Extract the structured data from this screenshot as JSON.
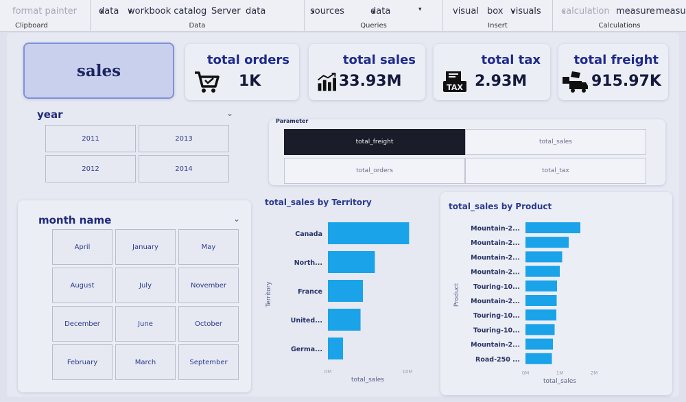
{
  "ribbon": {
    "clipboard": {
      "item": "format painter",
      "label": "Clipboard"
    },
    "data": {
      "items": [
        "data",
        "workbook catalog",
        "Server",
        "data"
      ],
      "label": "Data"
    },
    "queries": {
      "items": [
        "sources",
        "data"
      ],
      "label": "Queries"
    },
    "insert": {
      "items": [
        "visual",
        "box",
        "visuals"
      ],
      "label": "Insert"
    },
    "calculations": {
      "items": [
        "calculation",
        "measure",
        "measure"
      ],
      "label": "Calculations"
    }
  },
  "dashboard": {
    "title": "sales",
    "kpis": [
      {
        "title": "total orders",
        "value": "1K",
        "icon": "cart-icon"
      },
      {
        "title": "total sales",
        "value": "33.93M",
        "icon": "growth-chart-icon"
      },
      {
        "title": "total tax",
        "value": "2.93M",
        "icon": "tax-icon"
      },
      {
        "title": "total freight",
        "value": "915.97K",
        "icon": "delivery-truck-icon"
      }
    ],
    "year_slicer": {
      "title": "year",
      "options": [
        "2011",
        "2013",
        "2012",
        "2014"
      ]
    },
    "month_slicer": {
      "title": "month name",
      "options": [
        "April",
        "January",
        "May",
        "August",
        "July",
        "November",
        "December",
        "June",
        "October",
        "February",
        "March",
        "September"
      ]
    },
    "parameter": {
      "title": "Parameter",
      "options": [
        "total_freight",
        "total_sales",
        "total_orders",
        "total_tax"
      ],
      "selected": "total_freight"
    }
  },
  "chart_data": [
    {
      "type": "bar",
      "orientation": "horizontal",
      "title": "total_sales by Territory",
      "ylabel": "Territory",
      "xlabel": "total_sales",
      "categories": [
        "Canada",
        "North...",
        "France",
        "United...",
        "Germa..."
      ],
      "values": [
        10.2,
        5.9,
        4.4,
        4.1,
        1.9
      ],
      "xlim": [
        0,
        10
      ],
      "x_ticks": [
        "0M",
        "10M"
      ],
      "color": "#1aa3e8"
    },
    {
      "type": "bar",
      "orientation": "horizontal",
      "title": "total_sales by Product",
      "ylabel": "Product",
      "xlabel": "total_sales",
      "categories": [
        "Mountain-2...",
        "Mountain-2...",
        "Mountain-2...",
        "Mountain-2...",
        "Touring-10...",
        "Mountain-2...",
        "Touring-10...",
        "Touring-10...",
        "Mountain-2...",
        "Road-250 ..."
      ],
      "values": [
        1.6,
        1.26,
        1.07,
        1.0,
        0.92,
        0.91,
        0.9,
        0.85,
        0.8,
        0.77
      ],
      "xlim": [
        0,
        2
      ],
      "x_ticks": [
        "0M",
        "1M",
        "2M"
      ],
      "color": "#1aa3e8"
    }
  ]
}
